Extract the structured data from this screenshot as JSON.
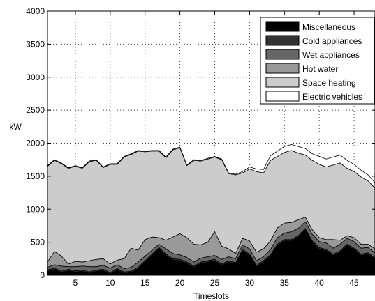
{
  "chart_data": {
    "type": "area",
    "stacked": true,
    "title": "",
    "xlabel": "Timeslots",
    "ylabel": "kW",
    "xlim": [
      1,
      48
    ],
    "ylim": [
      0,
      4000
    ],
    "xticks": [
      5,
      10,
      15,
      20,
      25,
      30,
      35,
      40,
      45
    ],
    "yticks": [
      0,
      500,
      1000,
      1500,
      2000,
      2500,
      3000,
      3500,
      4000
    ],
    "grid": true,
    "legend_position": "top-right",
    "x": [
      1,
      2,
      3,
      4,
      5,
      6,
      7,
      8,
      9,
      10,
      11,
      12,
      13,
      14,
      15,
      16,
      17,
      18,
      19,
      20,
      21,
      22,
      23,
      24,
      25,
      26,
      27,
      28,
      29,
      30,
      31,
      32,
      33,
      34,
      35,
      36,
      37,
      38,
      39,
      40,
      41,
      42,
      43,
      44,
      45,
      46,
      47,
      48
    ],
    "series": [
      {
        "name": "Miscellaneous",
        "color": "#000000",
        "values": [
          60,
          90,
          40,
          70,
          50,
          60,
          30,
          60,
          70,
          20,
          80,
          30,
          40,
          100,
          200,
          300,
          400,
          300,
          230,
          220,
          180,
          120,
          180,
          200,
          220,
          150,
          200,
          170,
          370,
          300,
          130,
          200,
          290,
          450,
          520,
          520,
          580,
          690,
          500,
          400,
          370,
          300,
          350,
          450,
          390,
          300,
          320,
          240
        ]
      },
      {
        "name": "Cold appliances",
        "color": "#333333",
        "values": [
          20,
          20,
          20,
          20,
          20,
          20,
          20,
          20,
          20,
          20,
          20,
          20,
          20,
          20,
          20,
          20,
          20,
          20,
          20,
          20,
          20,
          20,
          20,
          20,
          20,
          20,
          20,
          20,
          20,
          20,
          20,
          20,
          20,
          20,
          20,
          20,
          20,
          20,
          20,
          20,
          20,
          20,
          20,
          20,
          20,
          20,
          20,
          20
        ]
      },
      {
        "name": "Wet appliances",
        "color": "#666666",
        "values": [
          40,
          50,
          80,
          40,
          60,
          60,
          80,
          50,
          60,
          70,
          60,
          50,
          60,
          80,
          70,
          60,
          50,
          80,
          80,
          70,
          70,
          60,
          60,
          60,
          60,
          70,
          60,
          60,
          70,
          80,
          70,
          60,
          80,
          100,
          100,
          120,
          110,
          100,
          100,
          90,
          100,
          90,
          100,
          90,
          100,
          90,
          80,
          80
        ]
      },
      {
        "name": "Hot water",
        "color": "#999999",
        "values": [
          80,
          200,
          150,
          40,
          80,
          60,
          90,
          110,
          100,
          60,
          70,
          150,
          290,
          180,
          250,
          200,
          100,
          130,
          250,
          320,
          300,
          270,
          200,
          220,
          360,
          200,
          120,
          80,
          100,
          120,
          130,
          120,
          130,
          150,
          150,
          140,
          130,
          70,
          70,
          60,
          50,
          130,
          60,
          40,
          60,
          60,
          50,
          60
        ]
      },
      {
        "name": "Space heating",
        "color": "#cccccc",
        "values": [
          1450,
          1380,
          1400,
          1450,
          1440,
          1420,
          1500,
          1500,
          1380,
          1510,
          1450,
          1540,
          1420,
          1500,
          1330,
          1300,
          1310,
          1250,
          1320,
          1300,
          1090,
          1270,
          1270,
          1260,
          1130,
          1310,
          1140,
          1190,
          990,
          1090,
          1220,
          1150,
          1220,
          1080,
          1070,
          1090,
          1010,
          940,
          1050,
          1110,
          1100,
          1130,
          1170,
          1020,
          1000,
          1020,
          960,
          920
        ]
      },
      {
        "name": "Electric vehicles",
        "color": "#ffffff",
        "values": [
          10,
          10,
          10,
          10,
          10,
          10,
          10,
          10,
          10,
          10,
          10,
          10,
          10,
          10,
          10,
          10,
          10,
          10,
          10,
          10,
          10,
          10,
          10,
          10,
          10,
          10,
          10,
          10,
          20,
          30,
          40,
          50,
          70,
          80,
          90,
          90,
          100,
          100,
          100,
          120,
          120,
          120,
          120,
          120,
          110,
          100,
          90,
          80
        ]
      }
    ]
  }
}
